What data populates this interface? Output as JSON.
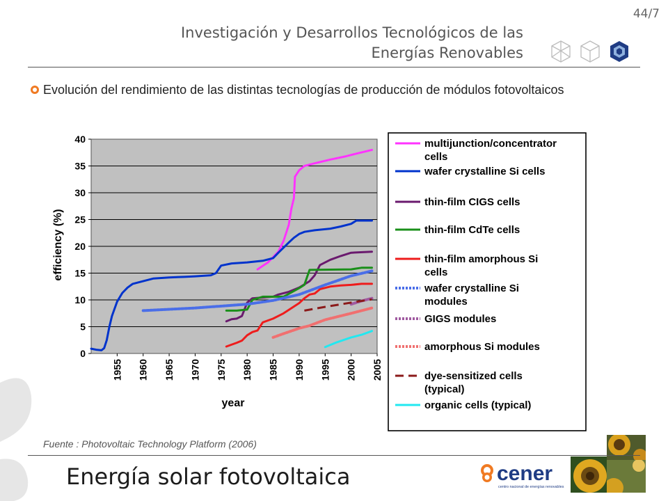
{
  "header": {
    "page_number": "44/7",
    "title_line1": "Investigación y Desarrollos Tecnológicos de las",
    "title_line2": "Energías Renovables"
  },
  "subtitle": "Evolución del rendimiento de las distintas tecnologías de producción de módulos fotovoltaicos",
  "source": "Fuente : Photovoltaic Technology Platform (2006)",
  "footer": {
    "title": "Energía solar fotovoltaica",
    "logo_name": "cener",
    "logo_tagline": "centro nacional de energías renovables"
  },
  "colors": {
    "accent": "#f07a22",
    "plot_background": "#c0c0c0",
    "logo_blue": "#1f3c84"
  },
  "icons": [
    "bullet-icon",
    "cube-outline-icon",
    "cube-logo-icon",
    "sunflower-photo",
    "cener-sun-icon"
  ],
  "chart_data": {
    "type": "line",
    "xlabel": "year",
    "ylabel": "efficiency (%)",
    "xlim": [
      1950,
      2005
    ],
    "ylim": [
      0,
      40
    ],
    "x_ticks": [
      1955,
      1960,
      1965,
      1970,
      1975,
      1980,
      1985,
      1990,
      1995,
      2000,
      2005
    ],
    "y_ticks": [
      0,
      5,
      10,
      15,
      20,
      25,
      30,
      35,
      40
    ],
    "grid": "horizontal",
    "legend_position": "right",
    "series": [
      {
        "name": "multijunction/concentrator cells",
        "color": "#ff33ff",
        "style": "solid",
        "points": [
          [
            1982,
            15.7
          ],
          [
            1984,
            17
          ],
          [
            1986,
            19
          ],
          [
            1987,
            21
          ],
          [
            1988,
            24
          ],
          [
            1988.5,
            27
          ],
          [
            1989,
            29
          ],
          [
            1989.2,
            33
          ],
          [
            1990,
            34.2
          ],
          [
            1991,
            35
          ],
          [
            1993,
            35.5
          ],
          [
            1996,
            36.2
          ],
          [
            1999,
            36.8
          ],
          [
            2001,
            37.3
          ],
          [
            2004,
            38
          ]
        ]
      },
      {
        "name": "wafer crystalline Si cells",
        "color": "#0033cc",
        "style": "solid",
        "points": [
          [
            1950,
            0.9
          ],
          [
            1951,
            0.7
          ],
          [
            1952,
            0.6
          ],
          [
            1952.5,
            1
          ],
          [
            1953,
            2.5
          ],
          [
            1953.5,
            5
          ],
          [
            1954,
            7
          ],
          [
            1955,
            9.7
          ],
          [
            1956,
            11.3
          ],
          [
            1957,
            12.3
          ],
          [
            1958,
            13
          ],
          [
            1960,
            13.5
          ],
          [
            1962,
            14
          ],
          [
            1965,
            14.2
          ],
          [
            1968,
            14.3
          ],
          [
            1970,
            14.4
          ],
          [
            1973,
            14.6
          ],
          [
            1974,
            15
          ],
          [
            1975,
            16.4
          ],
          [
            1977,
            16.8
          ],
          [
            1980,
            17
          ],
          [
            1983,
            17.3
          ],
          [
            1985,
            17.8
          ],
          [
            1986,
            18.8
          ],
          [
            1988,
            20.7
          ],
          [
            1989,
            21.6
          ],
          [
            1990,
            22.3
          ],
          [
            1991,
            22.7
          ],
          [
            1993,
            23
          ],
          [
            1996,
            23.3
          ],
          [
            1998,
            23.7
          ],
          [
            2000,
            24.2
          ],
          [
            2001,
            24.8
          ],
          [
            2004,
            24.8
          ]
        ]
      },
      {
        "name": "thin-film CIGS cells",
        "color": "#6a1a6e",
        "style": "solid",
        "points": [
          [
            1976,
            6
          ],
          [
            1977,
            6.4
          ],
          [
            1978,
            6.5
          ],
          [
            1979,
            7
          ],
          [
            1980,
            9.5
          ],
          [
            1981,
            10.3
          ],
          [
            1985,
            10.6
          ],
          [
            1986,
            11
          ],
          [
            1988,
            11.5
          ],
          [
            1990,
            12.3
          ],
          [
            1992,
            13.5
          ],
          [
            1993,
            14.6
          ],
          [
            1994,
            16.5
          ],
          [
            1996,
            17.5
          ],
          [
            1998,
            18.2
          ],
          [
            2000,
            18.8
          ],
          [
            2004,
            19
          ]
        ]
      },
      {
        "name": "thin-film CdTe cells",
        "color": "#1a8f1a",
        "style": "solid",
        "points": [
          [
            1976,
            8
          ],
          [
            1978,
            8
          ],
          [
            1980,
            8.2
          ],
          [
            1981,
            10
          ],
          [
            1982,
            10.3
          ],
          [
            1983,
            10.6
          ],
          [
            1987,
            10.6
          ],
          [
            1990,
            12.2
          ],
          [
            1991,
            12.8
          ],
          [
            1992,
            15.6
          ],
          [
            2000,
            15.7
          ],
          [
            2002,
            16
          ],
          [
            2004,
            16
          ]
        ]
      },
      {
        "name": "thin-film amorphous Si cells",
        "color": "#ee1c1c",
        "style": "solid",
        "points": [
          [
            1976,
            1.3
          ],
          [
            1978,
            2
          ],
          [
            1979,
            2.4
          ],
          [
            1980,
            3.4
          ],
          [
            1981,
            4
          ],
          [
            1982,
            4.3
          ],
          [
            1983,
            5.8
          ],
          [
            1985,
            6.5
          ],
          [
            1987,
            7.5
          ],
          [
            1990,
            9.4
          ],
          [
            1991,
            10.3
          ],
          [
            1992,
            11
          ],
          [
            1993,
            11.2
          ],
          [
            1994,
            12
          ],
          [
            1996,
            12.5
          ],
          [
            1998,
            12.7
          ],
          [
            2000,
            12.8
          ],
          [
            2002,
            13
          ],
          [
            2004,
            13
          ]
        ]
      },
      {
        "name": "wafer crystalline Si modules",
        "color": "#4a6ee8",
        "style": "dotted",
        "points": [
          [
            1960,
            8
          ],
          [
            1970,
            8.5
          ],
          [
            1980,
            9.2
          ],
          [
            1985,
            9.9
          ],
          [
            1990,
            11
          ],
          [
            1995,
            12.8
          ],
          [
            2000,
            14.5
          ],
          [
            2004,
            15.4
          ]
        ]
      },
      {
        "name": "GIGS modules",
        "color": "#a05aa0",
        "style": "dotted",
        "points": [
          [
            2000,
            9.2
          ],
          [
            2002,
            9.8
          ],
          [
            2004,
            10.3
          ]
        ]
      },
      {
        "name": "amorphous Si modules",
        "color": "#f07070",
        "style": "dotted",
        "points": [
          [
            1985,
            3
          ],
          [
            1987,
            3.7
          ],
          [
            1990,
            4.7
          ],
          [
            1992,
            5.2
          ],
          [
            1995,
            6.3
          ],
          [
            2000,
            7.5
          ],
          [
            2004,
            8.5
          ]
        ]
      },
      {
        "name": "dye-sensitized cells (typical)",
        "color": "#8b1a1a",
        "style": "dashed",
        "points": [
          [
            1991,
            8
          ],
          [
            1995,
            8.7
          ],
          [
            2000,
            9.5
          ],
          [
            2004,
            10.1
          ]
        ]
      },
      {
        "name": "organic cells (typical)",
        "color": "#22e8f0",
        "style": "solid",
        "points": [
          [
            1995,
            1.2
          ],
          [
            1997,
            2
          ],
          [
            2000,
            3
          ],
          [
            2002,
            3.5
          ],
          [
            2004,
            4.2
          ]
        ]
      }
    ],
    "legend": [
      {
        "line1": "multijunction/concentrator",
        "line2": "cells"
      },
      {
        "line1": "wafer crystalline Si cells",
        "line2": ""
      },
      {
        "line1": "thin-film CIGS cells",
        "line2": ""
      },
      {
        "line1": "thin-film CdTe cells",
        "line2": ""
      },
      {
        "line1": "thin-film amorphous Si",
        "line2": "cells"
      },
      {
        "line1": "wafer crystalline Si",
        "line2": "modules"
      },
      {
        "line1": "GIGS modules",
        "line2": ""
      },
      {
        "line1": "amorphous Si modules",
        "line2": ""
      },
      {
        "line1": "dye-sensitized cells",
        "line2": "(typical)"
      },
      {
        "line1": "organic cells (typical)",
        "line2": ""
      }
    ]
  }
}
